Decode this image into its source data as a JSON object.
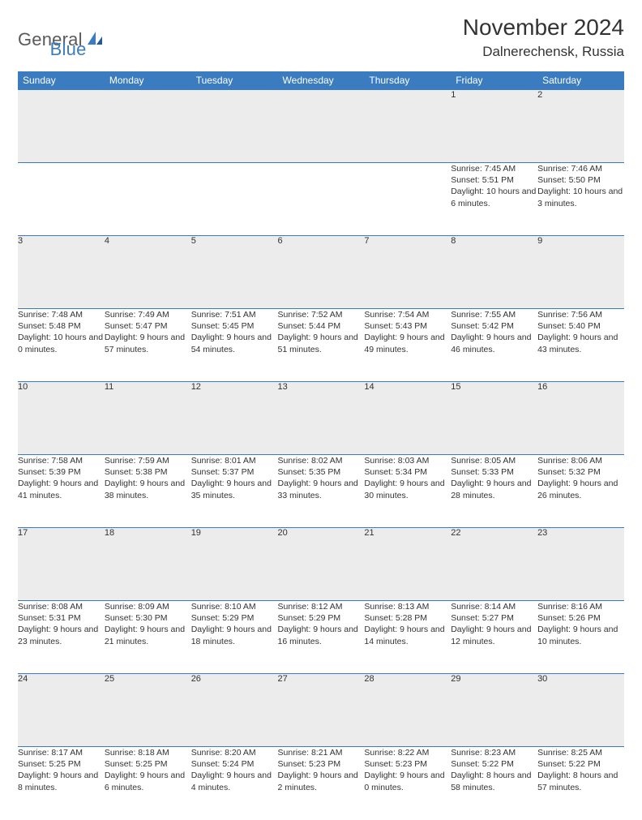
{
  "logo": {
    "text1": "General",
    "text2": "Blue"
  },
  "title": "November 2024",
  "location": "Dalnerechensk, Russia",
  "colors": {
    "header_bg": "#3b7bbf",
    "header_text": "#ffffff",
    "daynum_bg": "#ececec",
    "border": "#3b7bbf",
    "text": "#333333",
    "page_bg": "#ffffff",
    "logo_gray": "#5a5a5a",
    "logo_blue": "#3b7bbf"
  },
  "day_headers": [
    "Sunday",
    "Monday",
    "Tuesday",
    "Wednesday",
    "Thursday",
    "Friday",
    "Saturday"
  ],
  "weeks": [
    [
      null,
      null,
      null,
      null,
      null,
      {
        "n": "1",
        "sr": "Sunrise: 7:45 AM",
        "ss": "Sunset: 5:51 PM",
        "dl": "Daylight: 10 hours and 6 minutes."
      },
      {
        "n": "2",
        "sr": "Sunrise: 7:46 AM",
        "ss": "Sunset: 5:50 PM",
        "dl": "Daylight: 10 hours and 3 minutes."
      }
    ],
    [
      {
        "n": "3",
        "sr": "Sunrise: 7:48 AM",
        "ss": "Sunset: 5:48 PM",
        "dl": "Daylight: 10 hours and 0 minutes."
      },
      {
        "n": "4",
        "sr": "Sunrise: 7:49 AM",
        "ss": "Sunset: 5:47 PM",
        "dl": "Daylight: 9 hours and 57 minutes."
      },
      {
        "n": "5",
        "sr": "Sunrise: 7:51 AM",
        "ss": "Sunset: 5:45 PM",
        "dl": "Daylight: 9 hours and 54 minutes."
      },
      {
        "n": "6",
        "sr": "Sunrise: 7:52 AM",
        "ss": "Sunset: 5:44 PM",
        "dl": "Daylight: 9 hours and 51 minutes."
      },
      {
        "n": "7",
        "sr": "Sunrise: 7:54 AM",
        "ss": "Sunset: 5:43 PM",
        "dl": "Daylight: 9 hours and 49 minutes."
      },
      {
        "n": "8",
        "sr": "Sunrise: 7:55 AM",
        "ss": "Sunset: 5:42 PM",
        "dl": "Daylight: 9 hours and 46 minutes."
      },
      {
        "n": "9",
        "sr": "Sunrise: 7:56 AM",
        "ss": "Sunset: 5:40 PM",
        "dl": "Daylight: 9 hours and 43 minutes."
      }
    ],
    [
      {
        "n": "10",
        "sr": "Sunrise: 7:58 AM",
        "ss": "Sunset: 5:39 PM",
        "dl": "Daylight: 9 hours and 41 minutes."
      },
      {
        "n": "11",
        "sr": "Sunrise: 7:59 AM",
        "ss": "Sunset: 5:38 PM",
        "dl": "Daylight: 9 hours and 38 minutes."
      },
      {
        "n": "12",
        "sr": "Sunrise: 8:01 AM",
        "ss": "Sunset: 5:37 PM",
        "dl": "Daylight: 9 hours and 35 minutes."
      },
      {
        "n": "13",
        "sr": "Sunrise: 8:02 AM",
        "ss": "Sunset: 5:35 PM",
        "dl": "Daylight: 9 hours and 33 minutes."
      },
      {
        "n": "14",
        "sr": "Sunrise: 8:03 AM",
        "ss": "Sunset: 5:34 PM",
        "dl": "Daylight: 9 hours and 30 minutes."
      },
      {
        "n": "15",
        "sr": "Sunrise: 8:05 AM",
        "ss": "Sunset: 5:33 PM",
        "dl": "Daylight: 9 hours and 28 minutes."
      },
      {
        "n": "16",
        "sr": "Sunrise: 8:06 AM",
        "ss": "Sunset: 5:32 PM",
        "dl": "Daylight: 9 hours and 26 minutes."
      }
    ],
    [
      {
        "n": "17",
        "sr": "Sunrise: 8:08 AM",
        "ss": "Sunset: 5:31 PM",
        "dl": "Daylight: 9 hours and 23 minutes."
      },
      {
        "n": "18",
        "sr": "Sunrise: 8:09 AM",
        "ss": "Sunset: 5:30 PM",
        "dl": "Daylight: 9 hours and 21 minutes."
      },
      {
        "n": "19",
        "sr": "Sunrise: 8:10 AM",
        "ss": "Sunset: 5:29 PM",
        "dl": "Daylight: 9 hours and 18 minutes."
      },
      {
        "n": "20",
        "sr": "Sunrise: 8:12 AM",
        "ss": "Sunset: 5:29 PM",
        "dl": "Daylight: 9 hours and 16 minutes."
      },
      {
        "n": "21",
        "sr": "Sunrise: 8:13 AM",
        "ss": "Sunset: 5:28 PM",
        "dl": "Daylight: 9 hours and 14 minutes."
      },
      {
        "n": "22",
        "sr": "Sunrise: 8:14 AM",
        "ss": "Sunset: 5:27 PM",
        "dl": "Daylight: 9 hours and 12 minutes."
      },
      {
        "n": "23",
        "sr": "Sunrise: 8:16 AM",
        "ss": "Sunset: 5:26 PM",
        "dl": "Daylight: 9 hours and 10 minutes."
      }
    ],
    [
      {
        "n": "24",
        "sr": "Sunrise: 8:17 AM",
        "ss": "Sunset: 5:25 PM",
        "dl": "Daylight: 9 hours and 8 minutes."
      },
      {
        "n": "25",
        "sr": "Sunrise: 8:18 AM",
        "ss": "Sunset: 5:25 PM",
        "dl": "Daylight: 9 hours and 6 minutes."
      },
      {
        "n": "26",
        "sr": "Sunrise: 8:20 AM",
        "ss": "Sunset: 5:24 PM",
        "dl": "Daylight: 9 hours and 4 minutes."
      },
      {
        "n": "27",
        "sr": "Sunrise: 8:21 AM",
        "ss": "Sunset: 5:23 PM",
        "dl": "Daylight: 9 hours and 2 minutes."
      },
      {
        "n": "28",
        "sr": "Sunrise: 8:22 AM",
        "ss": "Sunset: 5:23 PM",
        "dl": "Daylight: 9 hours and 0 minutes."
      },
      {
        "n": "29",
        "sr": "Sunrise: 8:23 AM",
        "ss": "Sunset: 5:22 PM",
        "dl": "Daylight: 8 hours and 58 minutes."
      },
      {
        "n": "30",
        "sr": "Sunrise: 8:25 AM",
        "ss": "Sunset: 5:22 PM",
        "dl": "Daylight: 8 hours and 57 minutes."
      }
    ]
  ]
}
